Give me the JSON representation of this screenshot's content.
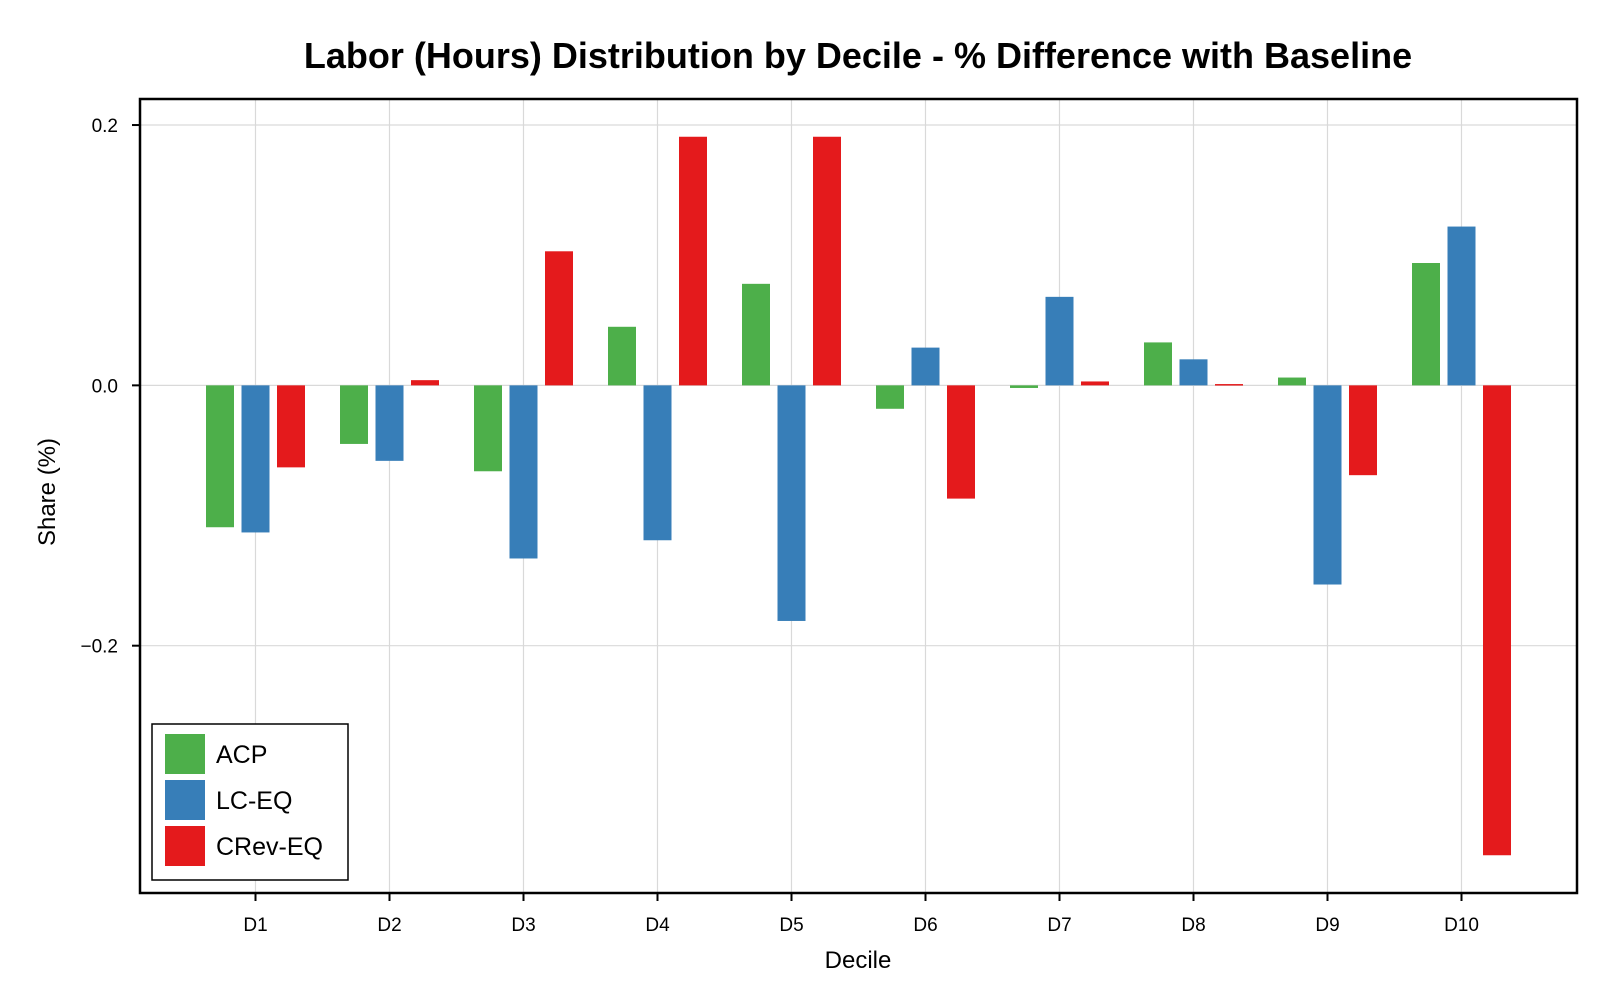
{
  "chart_data": {
    "type": "bar",
    "title": "Labor (Hours) Distribution by Decile - % Difference with Baseline",
    "xlabel": "Decile",
    "ylabel": "Share (%)",
    "categories": [
      "D1",
      "D2",
      "D3",
      "D4",
      "D5",
      "D6",
      "D7",
      "D8",
      "D9",
      "D10"
    ],
    "ylim": [
      -0.39,
      0.22
    ],
    "yticks": [
      -0.2,
      0.0,
      0.2
    ],
    "ytick_labels": [
      "−0.2",
      "0.0",
      "0.2"
    ],
    "grid": true,
    "legend_position": "bottom-left",
    "series": [
      {
        "name": "ACP",
        "color": "#4daf4a",
        "values": [
          -0.109,
          -0.045,
          -0.066,
          0.045,
          0.078,
          -0.018,
          -0.002,
          0.033,
          0.006,
          0.094
        ]
      },
      {
        "name": "LC-EQ",
        "color": "#377eb8",
        "values": [
          -0.113,
          -0.058,
          -0.133,
          -0.119,
          -0.181,
          0.029,
          0.068,
          0.02,
          -0.153,
          0.122
        ]
      },
      {
        "name": "CRev-EQ",
        "color": "#e41a1c",
        "values": [
          -0.063,
          0.004,
          0.103,
          0.191,
          0.191,
          -0.087,
          0.003,
          0.001,
          -0.069,
          -0.361
        ]
      }
    ]
  }
}
